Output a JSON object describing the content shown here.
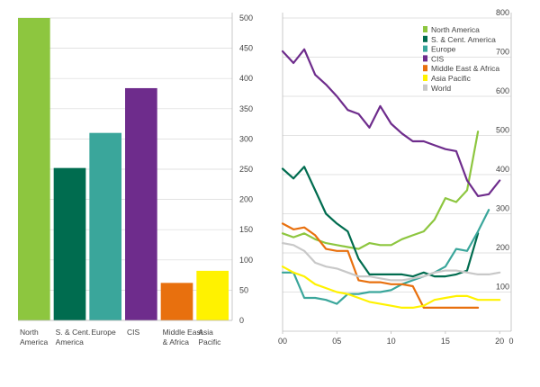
{
  "chart_data": [
    {
      "type": "bar",
      "title": "",
      "categories": [
        [
          "North",
          "America"
        ],
        [
          "S. & Cent.",
          "America"
        ],
        [
          "Europe"
        ],
        [
          "CIS"
        ],
        [
          "Middle East",
          "& Africa"
        ],
        [
          "Asia",
          "Pacific"
        ]
      ],
      "values": [
        500,
        252,
        310,
        384,
        62,
        82
      ],
      "colors": [
        "#8dc63f",
        "#006c4f",
        "#3aa69b",
        "#6e2c8c",
        "#e8700e",
        "#fff200"
      ],
      "ylim": [
        0,
        500
      ],
      "yticks": [
        "0",
        "50",
        "100",
        "150",
        "200",
        "250",
        "300",
        "350",
        "400",
        "450",
        "500"
      ],
      "ytick_values": [
        0,
        50,
        100,
        150,
        200,
        250,
        300,
        350,
        400,
        450,
        500
      ],
      "y_axis_side": "right",
      "grid": true
    },
    {
      "type": "line",
      "title": "",
      "x": [
        0,
        1,
        2,
        3,
        4,
        5,
        6,
        7,
        8,
        9,
        10,
        11,
        12,
        13,
        14,
        15,
        16,
        17,
        18,
        19,
        20
      ],
      "xticks": [
        "00",
        "05",
        "10",
        "15",
        "20"
      ],
      "xtick_values": [
        0,
        5,
        10,
        15,
        20
      ],
      "ylim": [
        0,
        800
      ],
      "yticks": [
        "0",
        "100",
        "200",
        "300",
        "400",
        "500",
        "600",
        "700",
        "800"
      ],
      "ytick_values": [
        0,
        100,
        200,
        300,
        400,
        500,
        600,
        700,
        800
      ],
      "y_axis_side": "right",
      "grid": true,
      "legend_position": "top-right",
      "series": [
        {
          "name": "North America",
          "color": "#8dc63f",
          "values": [
            250,
            240,
            250,
            235,
            225,
            220,
            215,
            210,
            225,
            220,
            220,
            235,
            245,
            255,
            285,
            340,
            330,
            360,
            510,
            null,
            null
          ]
        },
        {
          "name": "S. & Cent. America",
          "color": "#006c4f",
          "values": [
            415,
            390,
            420,
            360,
            300,
            275,
            255,
            185,
            145,
            145,
            145,
            145,
            140,
            150,
            140,
            140,
            145,
            155,
            250,
            null,
            null
          ]
        },
        {
          "name": "Europe",
          "color": "#3aa69b",
          "values": [
            150,
            150,
            85,
            85,
            80,
            70,
            95,
            95,
            100,
            100,
            105,
            120,
            130,
            140,
            150,
            165,
            210,
            205,
            255,
            310,
            null
          ]
        },
        {
          "name": "CIS",
          "color": "#6e2c8c",
          "values": [
            715,
            685,
            720,
            655,
            630,
            600,
            565,
            555,
            520,
            575,
            530,
            505,
            485,
            485,
            475,
            465,
            460,
            385,
            345,
            350,
            385
          ]
        },
        {
          "name": "Middle East & Africa",
          "color": "#e8700e",
          "values": [
            275,
            260,
            265,
            245,
            210,
            205,
            205,
            130,
            125,
            125,
            120,
            120,
            115,
            60,
            60,
            60,
            60,
            60,
            60,
            null,
            null
          ]
        },
        {
          "name": "Asia Pacific",
          "color": "#fff200",
          "values": [
            165,
            150,
            140,
            120,
            110,
            100,
            95,
            85,
            75,
            70,
            65,
            60,
            60,
            65,
            80,
            85,
            90,
            90,
            80,
            80,
            80
          ]
        },
        {
          "name": "World",
          "color": "#c8c8c8",
          "values": [
            225,
            220,
            205,
            175,
            165,
            160,
            150,
            140,
            140,
            135,
            130,
            130,
            135,
            140,
            150,
            155,
            155,
            150,
            145,
            145,
            150
          ]
        }
      ]
    }
  ]
}
